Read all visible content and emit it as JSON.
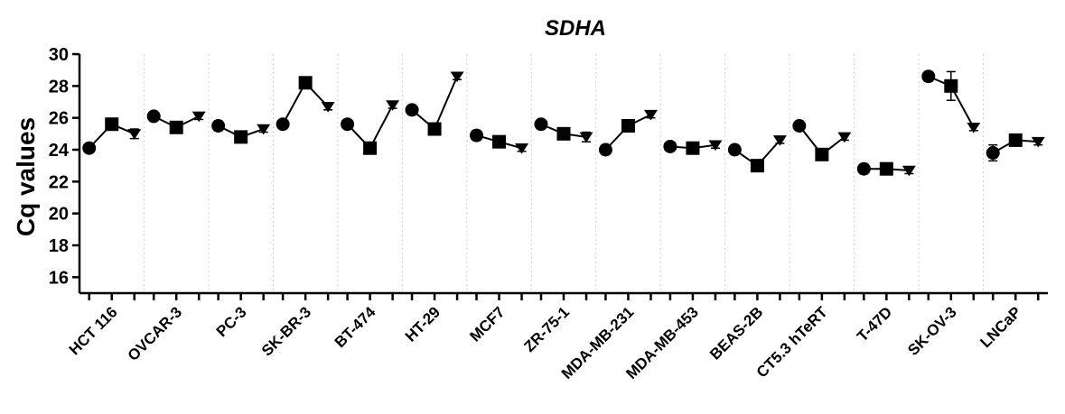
{
  "chart_data": {
    "type": "scatter",
    "title": "SDHA",
    "ylabel": "Cq values",
    "xlabel": "",
    "ylim": [
      15,
      30
    ],
    "yticks": [
      16,
      18,
      20,
      22,
      24,
      26,
      28,
      30
    ],
    "grid": "vertical dotted separators between groups",
    "markers": [
      "circle",
      "square",
      "triangle-down"
    ],
    "categories": [
      "HCT 116",
      "OVCAR-3",
      "PC-3",
      "SK-BR-3",
      "BT-474",
      "HT-29",
      "MCF7",
      "ZR-75-1",
      "MDA-MB-231",
      "MDA-MB-453",
      "BEAS-2B",
      "CT5.3 hTeRT",
      "T-47D",
      "SK-OV-3",
      "LNCaP"
    ],
    "groups": [
      {
        "values": [
          24.1,
          25.6,
          25.0
        ],
        "errors": [
          0.2,
          0.2,
          0.3
        ]
      },
      {
        "values": [
          26.1,
          25.4,
          26.1
        ],
        "errors": [
          0.2,
          0.2,
          0.2
        ]
      },
      {
        "values": [
          25.5,
          24.8,
          25.3
        ],
        "errors": [
          0.3,
          0.2,
          0.2
        ]
      },
      {
        "values": [
          25.6,
          28.2,
          26.7
        ],
        "errors": [
          0.2,
          0.2,
          0.2
        ]
      },
      {
        "values": [
          25.6,
          24.1,
          26.8
        ],
        "errors": [
          0.2,
          0.2,
          0.2
        ]
      },
      {
        "values": [
          26.5,
          25.3,
          28.6
        ],
        "errors": [
          0.2,
          0.2,
          0.2
        ]
      },
      {
        "values": [
          24.9,
          24.5,
          24.1
        ],
        "errors": [
          0.3,
          0.2,
          0.2
        ]
      },
      {
        "values": [
          25.6,
          25.0,
          24.8
        ],
        "errors": [
          0.2,
          0.2,
          0.3
        ]
      },
      {
        "values": [
          24.0,
          25.5,
          26.2
        ],
        "errors": [
          0.3,
          0.2,
          0.2
        ]
      },
      {
        "values": [
          24.2,
          24.1,
          24.3
        ],
        "errors": [
          0.2,
          0.2,
          0.2
        ]
      },
      {
        "values": [
          24.0,
          23.0,
          24.6
        ],
        "errors": [
          0.2,
          0.2,
          0.2
        ]
      },
      {
        "values": [
          25.5,
          23.7,
          24.8
        ],
        "errors": [
          0.2,
          0.2,
          0.2
        ]
      },
      {
        "values": [
          22.8,
          22.8,
          22.7
        ],
        "errors": [
          0.3,
          0.2,
          0.2
        ]
      },
      {
        "values": [
          28.6,
          28.0,
          25.4
        ],
        "errors": [
          0.3,
          0.9,
          0.2
        ]
      },
      {
        "values": [
          23.8,
          24.6,
          24.5
        ],
        "errors": [
          0.5,
          0.2,
          0.2
        ]
      }
    ]
  }
}
